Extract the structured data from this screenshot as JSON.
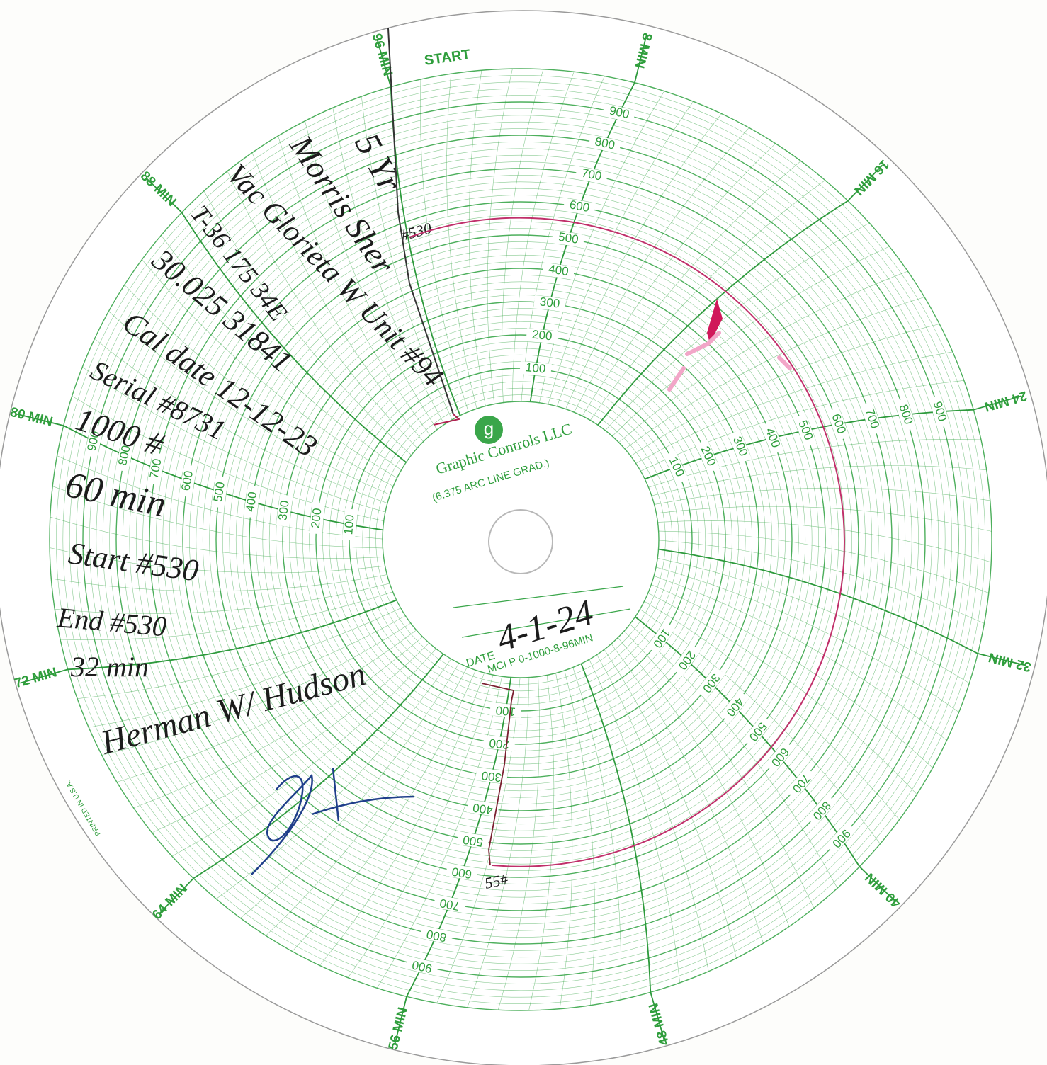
{
  "chart_paper": {
    "start_label": "START",
    "time_labels": [
      "96 MIN",
      "8 MIN",
      "16 MIN",
      "24 MIN",
      "32 MIN",
      "40 MIN",
      "48 MIN",
      "56 MIN",
      "64 MIN",
      "72 MIN",
      "80 MIN",
      "88 MIN"
    ],
    "scale_labels": [
      100,
      200,
      300,
      400,
      500,
      600,
      700,
      800,
      900
    ],
    "logo": "g",
    "brand": "Graphic Controls LLC",
    "grad_note": "(6.375 ARC LINE GRAD.)",
    "date_label": "DATE",
    "part_number": "MCI P 0-1000-8-96MIN",
    "printed_in": "PRINTED IN U.S.A."
  },
  "handwritten": {
    "date": "4-1-24",
    "notes": [
      "5 Yr",
      "Morris Sher",
      "Vac Glorieta W Unit #94",
      "T-36 175 34E",
      "30.025 31841",
      "Cal date 12-12-23",
      "Serial #8731",
      "1000 #",
      "60 min",
      "Start #530",
      "End #530",
      "32 min",
      "Herman W/ Hudson"
    ],
    "trace_marks": [
      "#530",
      "55#"
    ]
  }
}
